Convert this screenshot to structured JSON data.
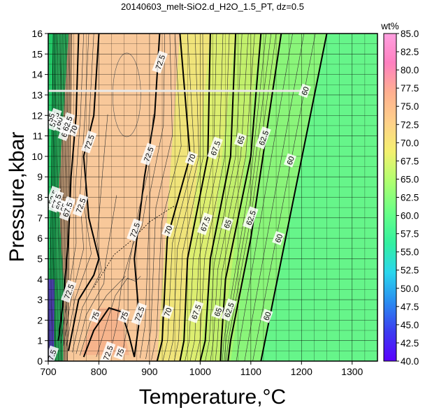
{
  "chart_data": {
    "type": "heatmap",
    "title": "20140603_melt-SiO2.d_H2O_1.5_PT, dz=0.5",
    "xlabel": "Temperature,°C",
    "ylabel": "Pressure,kbar",
    "xlim": [
      700,
      1350
    ],
    "ylim": [
      0,
      16
    ],
    "x_ticks": [
      "700",
      "800",
      "900",
      "1000",
      "1100",
      "1200",
      "1300"
    ],
    "y_ticks": [
      "0",
      "1",
      "2",
      "3",
      "4",
      "5",
      "6",
      "7",
      "8",
      "9",
      "10",
      "11",
      "12",
      "13",
      "14",
      "15",
      "16"
    ],
    "grid": true,
    "colorbar": {
      "title": "wt%",
      "min": 40,
      "max": 85,
      "ticks": [
        "40.0",
        "42.5",
        "45.0",
        "47.5",
        "50.0",
        "52.5",
        "55.0",
        "57.5",
        "60.0",
        "62.5",
        "65.0",
        "67.5",
        "70.0",
        "72.5",
        "75.0",
        "77.5",
        "80.0",
        "82.5",
        "85.0"
      ],
      "colors": [
        "#5a00ff",
        "#3c3cf0",
        "#2a8cf0",
        "#2ad6ee",
        "#33f0a0",
        "#66ff88",
        "#b0ff70",
        "#f4f070",
        "#ffd08a",
        "#ffb090",
        "#ff80c0",
        "#ffa0e0"
      ]
    },
    "contour_labels": [
      {
        "text": "60",
        "x": 1207,
        "y": 13.2
      },
      {
        "text": "60",
        "x": 1178,
        "y": 9.8
      },
      {
        "text": "60",
        "x": 1155,
        "y": 6.0
      },
      {
        "text": "60",
        "x": 1132,
        "y": 2.2
      },
      {
        "text": "62.5",
        "x": 1125,
        "y": 10.9
      },
      {
        "text": "62.5",
        "x": 1100,
        "y": 7.0
      },
      {
        "text": "62.5",
        "x": 1057,
        "y": 2.5
      },
      {
        "text": "65",
        "x": 1080,
        "y": 10.8
      },
      {
        "text": "65",
        "x": 1054,
        "y": 6.7
      },
      {
        "text": "65",
        "x": 1035,
        "y": 2.4
      },
      {
        "text": "67.5",
        "x": 1030,
        "y": 10.4
      },
      {
        "text": "67.5",
        "x": 1010,
        "y": 6.7
      },
      {
        "text": "67.5",
        "x": 992,
        "y": 2.4
      },
      {
        "text": "70",
        "x": 983,
        "y": 9.9
      },
      {
        "text": "70",
        "x": 937,
        "y": 6.4
      },
      {
        "text": "70",
        "x": 936,
        "y": 2.4
      },
      {
        "text": "72.5",
        "x": 921,
        "y": 14.6
      },
      {
        "text": "72.5",
        "x": 898,
        "y": 10.1
      },
      {
        "text": "72.5",
        "x": 871,
        "y": 6.4
      },
      {
        "text": "72.5",
        "x": 880,
        "y": 2.3
      },
      {
        "text": "72.5",
        "x": 781,
        "y": 10.7
      },
      {
        "text": "72.5",
        "x": 764,
        "y": 7.6
      },
      {
        "text": "72.5",
        "x": 741,
        "y": 3.4
      },
      {
        "text": "72.5",
        "x": 818,
        "y": 0.4
      },
      {
        "text": "75",
        "x": 793,
        "y": 2.2
      },
      {
        "text": "75",
        "x": 850,
        "y": 2.2
      },
      {
        "text": "75",
        "x": 842,
        "y": 0.4
      },
      {
        "text": "70",
        "x": 750,
        "y": 11.3
      },
      {
        "text": "70",
        "x": 742,
        "y": 7.7
      },
      {
        "text": "67.5",
        "x": 735,
        "y": 11.3
      },
      {
        "text": "65",
        "x": 724,
        "y": 11.5
      },
      {
        "text": "62.5",
        "x": 738,
        "y": 11.6
      },
      {
        "text": "60",
        "x": 721,
        "y": 11.7
      },
      {
        "text": "57.5",
        "x": 712,
        "y": 11.8
      },
      {
        "text": "55",
        "x": 705,
        "y": 11.9
      },
      {
        "text": "52.5",
        "x": 710,
        "y": 8.0
      },
      {
        "text": "57.5",
        "x": 716,
        "y": 7.8
      },
      {
        "text": "60",
        "x": 722,
        "y": 7.6
      },
      {
        "text": "65",
        "x": 731,
        "y": 7.5
      },
      {
        "text": "67.5",
        "x": 738,
        "y": 7.4
      },
      {
        "text": "47.5",
        "x": 706,
        "y": 0.2
      }
    ]
  }
}
